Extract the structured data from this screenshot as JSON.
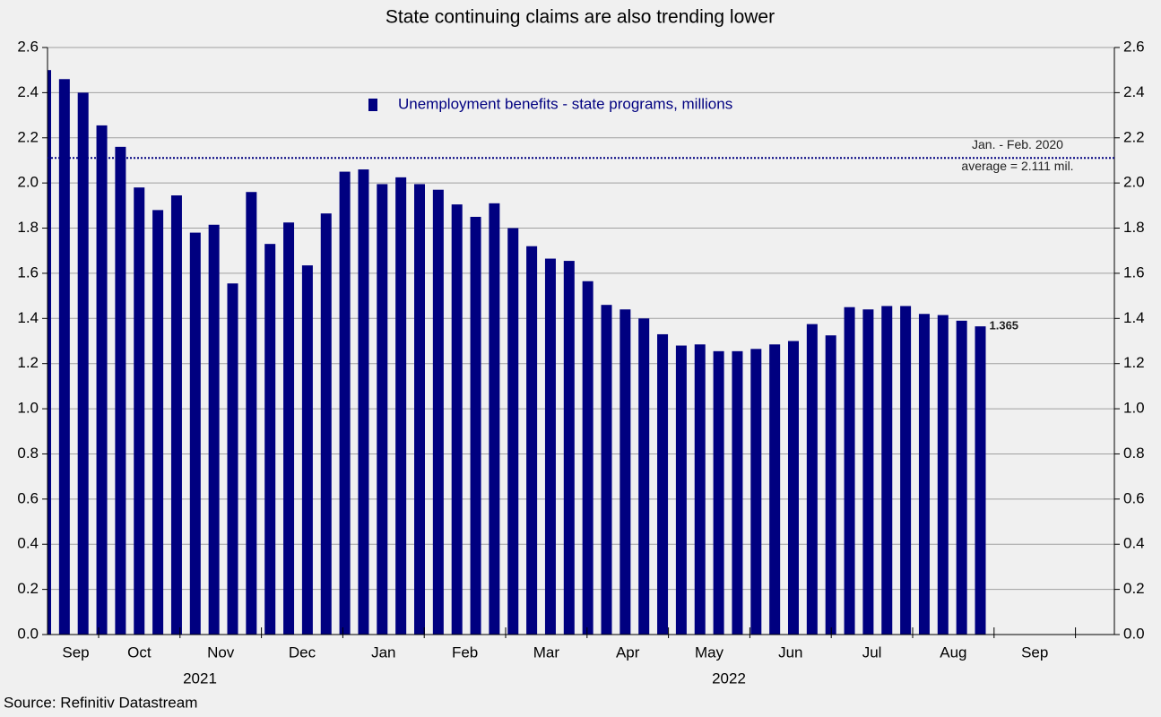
{
  "chart_data": {
    "type": "bar",
    "title": "State continuing claims are also trending lower",
    "source": "Source: Refinitiv Datastream",
    "categories": [
      null,
      null,
      null,
      null,
      null,
      null,
      null,
      null,
      null,
      null,
      null,
      null,
      null,
      null,
      null,
      null,
      null,
      null,
      null,
      null,
      null,
      null,
      null,
      null,
      null,
      null,
      null,
      null,
      null,
      null,
      null,
      null,
      null,
      null,
      null,
      null,
      null,
      null,
      null,
      null,
      null,
      null,
      null,
      null,
      null,
      null,
      null,
      null,
      null,
      null,
      null
    ],
    "series": [
      {
        "name": "Unemployment benefits - state programs, millions",
        "color": "#000080",
        "values": [
          2.5,
          2.46,
          2.4,
          2.255,
          2.16,
          1.98,
          1.88,
          1.945,
          1.78,
          1.815,
          1.555,
          1.96,
          1.73,
          1.825,
          1.635,
          1.865,
          2.05,
          2.06,
          1.995,
          2.025,
          1.995,
          1.97,
          1.905,
          1.85,
          1.91,
          1.8,
          1.72,
          1.665,
          1.655,
          1.565,
          1.46,
          1.44,
          1.4,
          1.33,
          1.28,
          1.285,
          1.255,
          1.255,
          1.265,
          1.285,
          1.3,
          1.375,
          1.325,
          1.45,
          1.44,
          1.455,
          1.455,
          1.42,
          1.415,
          1.39,
          1.365
        ],
        "value_labels": [
          null,
          null,
          null,
          null,
          null,
          null,
          null,
          null,
          null,
          null,
          null,
          null,
          null,
          null,
          null,
          null,
          null,
          null,
          null,
          null,
          null,
          null,
          null,
          null,
          null,
          null,
          null,
          null,
          null,
          null,
          null,
          null,
          null,
          null,
          null,
          null,
          null,
          null,
          null,
          null,
          null,
          null,
          null,
          null,
          null,
          null,
          null,
          null,
          null,
          null,
          "1.365"
        ]
      }
    ],
    "month_labels": [
      "Sep",
      "Oct",
      "Nov",
      "Dec",
      "Jan",
      "Feb",
      "Mar",
      "Apr",
      "May",
      "Jun",
      "Jul",
      "Aug",
      "Sep"
    ],
    "year_labels": [
      "2021",
      "2022"
    ],
    "reference_line": {
      "value": 2.111,
      "color": "#000080",
      "label_lines": [
        "Jan. - Feb. 2020",
        "average = 2.111 mil."
      ]
    },
    "ylim": [
      0,
      2.6
    ],
    "yticks": [
      {
        "value": 0,
        "label": "0.0"
      },
      0.2,
      0.4,
      0.6,
      0.8,
      {
        "value": 1,
        "label": "1.0"
      },
      1.2,
      1.4,
      1.6,
      1.8,
      {
        "value": 2,
        "label": "2.0"
      },
      2.2,
      2.4,
      2.6
    ],
    "grid": true,
    "legend": "top"
  }
}
